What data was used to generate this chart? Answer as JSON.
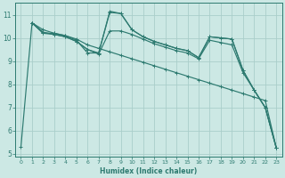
{
  "xlabel": "Humidex (Indice chaleur)",
  "bg_color": "#cce8e4",
  "line_color": "#2d7a70",
  "grid_color": "#aaceca",
  "xlim": [
    -0.5,
    23.5
  ],
  "ylim": [
    4.9,
    11.5
  ],
  "yticks": [
    5,
    6,
    7,
    8,
    9,
    10,
    11
  ],
  "xticks": [
    0,
    1,
    2,
    3,
    4,
    5,
    6,
    7,
    8,
    9,
    10,
    11,
    12,
    13,
    14,
    15,
    16,
    17,
    18,
    19,
    20,
    21,
    22,
    23
  ],
  "lines": [
    {
      "x": [
        0,
        1,
        2,
        3,
        4,
        5,
        6,
        7,
        8,
        9,
        10,
        11,
        12,
        13,
        14,
        15,
        16,
        17,
        18,
        19,
        20,
        21,
        22,
        23
      ],
      "y": [
        5.3,
        10.65,
        10.2,
        10.2,
        10.1,
        9.9,
        9.35,
        9.35,
        11.15,
        11.05,
        10.35,
        10.05,
        9.85,
        9.7,
        9.55,
        9.45,
        9.15,
        10.05,
        10.0,
        9.95,
        8.6,
        7.75,
        7.0,
        5.25
      ]
    },
    {
      "x": [
        1,
        2,
        3,
        4,
        5,
        6,
        7,
        8,
        9,
        10,
        11,
        12,
        13,
        14,
        15,
        16,
        17,
        18,
        19,
        20,
        21,
        22,
        23
      ],
      "y": [
        10.65,
        10.2,
        10.15,
        10.05,
        9.85,
        9.5,
        9.35,
        11.1,
        11.05,
        10.35,
        10.05,
        9.85,
        9.7,
        9.55,
        9.45,
        9.15,
        10.05,
        10.0,
        9.95,
        8.6,
        7.75,
        7.0,
        5.25
      ]
    },
    {
      "x": [
        1,
        2,
        3,
        4,
        5,
        6,
        7,
        8,
        9,
        10,
        11,
        12,
        13,
        14,
        15,
        16,
        17,
        18,
        19,
        20,
        21,
        22,
        23
      ],
      "y": [
        10.65,
        10.25,
        10.15,
        10.05,
        9.85,
        9.5,
        9.3,
        10.3,
        10.3,
        10.15,
        9.95,
        9.75,
        9.6,
        9.45,
        9.35,
        9.1,
        9.9,
        9.8,
        9.7,
        8.5,
        7.75,
        7.0,
        5.25
      ]
    },
    {
      "x": [
        1,
        2,
        3,
        4,
        5,
        6,
        7,
        8,
        9,
        10,
        11,
        12,
        13,
        14,
        15,
        16,
        17,
        18,
        19,
        20,
        21,
        22,
        23
      ],
      "y": [
        10.65,
        10.35,
        10.2,
        10.1,
        9.95,
        9.7,
        9.55,
        9.4,
        9.25,
        9.1,
        8.95,
        8.8,
        8.65,
        8.5,
        8.35,
        8.2,
        8.05,
        7.9,
        7.75,
        7.6,
        7.45,
        7.3,
        5.25
      ]
    }
  ]
}
